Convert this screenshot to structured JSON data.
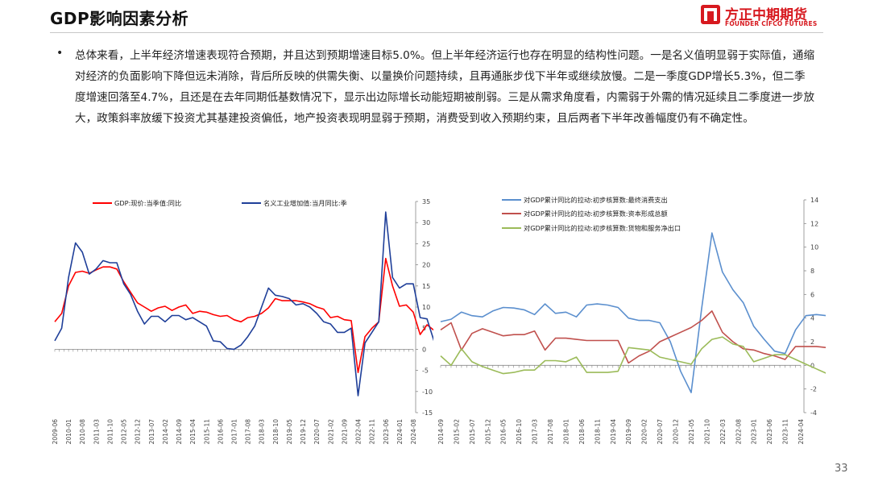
{
  "header": {
    "title": "GDP影响因素分析"
  },
  "logo": {
    "cn": "方正中期期货",
    "en": "FOUNDER CIFCO FUTURES",
    "color": "#d7191f"
  },
  "body": {
    "bullet": "•",
    "text": "总体来看，上半年经济增速表现符合预期，并且达到预期增速目标5.0%。但上半年经济运行也存在明显的结构性问题。一是名义值明显弱于实际值，通缩对经济的负面影响下降但远未消除，背后所反映的供需失衡、以量换价问题持续，且再通胀步伐下半年或继续放慢。二是一季度GDP增长5.3%，但二季度增速回落至4.7%，且还是在去年同期低基数情况下，显示出边际增长动能短期被削弱。三是从需求角度看，内需弱于外需的情况延续且二季度进一步放大，政策斜率放缓下投资尤其基建投资偏低，地产投资表现明显弱于预期，消费受到收入预期约束，且后两者下半年改善幅度仍有不确定性。"
  },
  "page_number": "33",
  "chart_data": [
    {
      "type": "line",
      "title": "",
      "legend_position": "top",
      "y_axis_position": "right",
      "ylim": [
        -15,
        35
      ],
      "yticks": [
        "35",
        "30",
        "25",
        "20",
        "15",
        "10",
        "5",
        "0",
        "-5",
        "-10",
        "-15"
      ],
      "xticks": [
        "2009-06",
        "2010-01",
        "2010-08",
        "2011-03",
        "2011-10",
        "2012-05",
        "2012-12",
        "2013-07",
        "2014-02",
        "2014-09",
        "2015-04",
        "2015-11",
        "2016-06",
        "2017-01",
        "2017-08",
        "2018-03",
        "2018-10",
        "2019-05",
        "2019-12",
        "2020-07",
        "2021-02",
        "2021-09",
        "2022-04",
        "2022-11",
        "2023-06",
        "2024-01",
        "2024-08"
      ],
      "series": [
        {
          "name": "GDP:现价:当季值:同比",
          "color": "#ff0000",
          "values": [
            [
              0,
              6.5
            ],
            [
              0.5,
              8.5
            ],
            [
              1.0,
              15
            ],
            [
              1.5,
              18.2
            ],
            [
              2.0,
              18.5
            ],
            [
              2.5,
              18
            ],
            [
              3.0,
              18.8
            ],
            [
              3.5,
              19.5
            ],
            [
              4.0,
              19.5
            ],
            [
              4.5,
              19
            ],
            [
              5.0,
              16
            ],
            [
              5.5,
              13.5
            ],
            [
              6.0,
              11
            ],
            [
              6.5,
              10
            ],
            [
              7.0,
              9
            ],
            [
              7.5,
              9.8
            ],
            [
              8.0,
              10.2
            ],
            [
              8.5,
              9.2
            ],
            [
              9.0,
              10
            ],
            [
              9.5,
              10.5
            ],
            [
              10.0,
              8.5
            ],
            [
              10.5,
              9
            ],
            [
              11.0,
              8.8
            ],
            [
              11.5,
              8.2
            ],
            [
              12.0,
              7.8
            ],
            [
              12.5,
              8
            ],
            [
              13.0,
              7
            ],
            [
              13.5,
              6.5
            ],
            [
              14.0,
              7.5
            ],
            [
              14.5,
              7.8
            ],
            [
              15.0,
              8.5
            ],
            [
              15.5,
              9.8
            ],
            [
              16.0,
              12
            ],
            [
              16.5,
              11.5
            ],
            [
              17.0,
              11.5
            ],
            [
              17.5,
              11.5
            ],
            [
              18.0,
              11.2
            ],
            [
              18.5,
              10.8
            ],
            [
              19.0,
              10
            ],
            [
              19.5,
              9.5
            ],
            [
              20.0,
              7.5
            ],
            [
              20.5,
              7.8
            ],
            [
              21.0,
              7
            ],
            [
              21.5,
              6.8
            ],
            [
              22.0,
              -5.5
            ],
            [
              22.5,
              3
            ],
            [
              23.0,
              5
            ],
            [
              23.5,
              6.5
            ],
            [
              24.0,
              21.5
            ],
            [
              24.5,
              15
            ],
            [
              25.0,
              10.2
            ],
            [
              25.5,
              10.5
            ],
            [
              26.0,
              8.8
            ],
            [
              26.5,
              3.5
            ],
            [
              27.0,
              5.8
            ],
            [
              27.5,
              4.5
            ],
            [
              28.0,
              2.2
            ],
            [
              28.5,
              5
            ],
            [
              29.0,
              5.2
            ],
            [
              29.5,
              4
            ],
            [
              30.0,
              4.2
            ],
            [
              30.5,
              4.2
            ],
            [
              31.0,
              4.2
            ]
          ]
        },
        {
          "name": "名义工业增加值:当月同比:季",
          "color": "#1f3f99",
          "values": [
            [
              0,
              2
            ],
            [
              0.5,
              5
            ],
            [
              1.0,
              17
            ],
            [
              1.5,
              25.2
            ],
            [
              2.0,
              23
            ],
            [
              2.5,
              17.8
            ],
            [
              3.0,
              19
            ],
            [
              3.5,
              21
            ],
            [
              4.0,
              20.5
            ],
            [
              4.5,
              20.5
            ],
            [
              5.0,
              15.5
            ],
            [
              5.5,
              13
            ],
            [
              6.0,
              9
            ],
            [
              6.5,
              6
            ],
            [
              7.0,
              7.8
            ],
            [
              7.5,
              7.8
            ],
            [
              8.0,
              6.5
            ],
            [
              8.5,
              8
            ],
            [
              9.0,
              8
            ],
            [
              9.5,
              7
            ],
            [
              10.0,
              7.5
            ],
            [
              10.5,
              6.5
            ],
            [
              11.0,
              5.5
            ],
            [
              11.5,
              2
            ],
            [
              12.0,
              1.8
            ],
            [
              12.5,
              0.2
            ],
            [
              13.0,
              0
            ],
            [
              13.5,
              1
            ],
            [
              14.0,
              3
            ],
            [
              14.5,
              5.5
            ],
            [
              15.0,
              10
            ],
            [
              15.5,
              14.5
            ],
            [
              16.0,
              12.8
            ],
            [
              16.5,
              12.5
            ],
            [
              17.0,
              12
            ],
            [
              17.5,
              10.5
            ],
            [
              18.0,
              10.8
            ],
            [
              18.5,
              10
            ],
            [
              19.0,
              8.5
            ],
            [
              19.5,
              6.5
            ],
            [
              20.0,
              6
            ],
            [
              20.5,
              4
            ],
            [
              21.0,
              4
            ],
            [
              21.5,
              5
            ],
            [
              22.0,
              -11
            ],
            [
              22.5,
              1.5
            ],
            [
              23.0,
              4
            ],
            [
              23.5,
              6.5
            ],
            [
              24.0,
              32.5
            ],
            [
              24.5,
              17
            ],
            [
              25.0,
              14.5
            ],
            [
              25.5,
              15.5
            ],
            [
              26.0,
              15.5
            ],
            [
              26.5,
              7.5
            ],
            [
              27.0,
              7.2
            ],
            [
              27.5,
              2
            ],
            [
              28.0,
              3.5
            ],
            [
              28.5,
              0.5
            ],
            [
              29.0,
              1
            ],
            [
              29.5,
              3
            ],
            [
              30.0,
              3.5
            ],
            [
              30.5,
              4.8
            ],
            [
              31.0,
              4.5
            ]
          ]
        }
      ]
    },
    {
      "type": "line",
      "title": "",
      "legend_position": "top",
      "y_axis_position": "right",
      "ylim": [
        -4,
        14
      ],
      "yticks": [
        "14",
        "12",
        "10",
        "8",
        "6",
        "4",
        "2",
        "0",
        "-2",
        "-4"
      ],
      "xticks": [
        "2014-09",
        "2015-02",
        "2015-07",
        "2015-12",
        "2016-05",
        "2016-10",
        "2017-03",
        "2017-08",
        "2018-01",
        "2018-06",
        "2018-11",
        "2019-04",
        "2019-09",
        "2020-02",
        "2020-07",
        "2020-12",
        "2021-05",
        "2021-10",
        "2022-03",
        "2022-08",
        "2023-01",
        "2023-06",
        "2023-11",
        "2024-04"
      ],
      "series": [
        {
          "name": "对GDP累计同比的拉动:初步核算数:最终消费支出",
          "color": "#5b8fce",
          "values": [
            [
              0,
              3.7
            ],
            [
              0.67,
              3.9
            ],
            [
              1.33,
              4.5
            ],
            [
              2.0,
              4.2
            ],
            [
              2.67,
              4.1
            ],
            [
              3.33,
              4.6
            ],
            [
              4.0,
              4.9
            ],
            [
              4.67,
              4.85
            ],
            [
              5.33,
              4.7
            ],
            [
              6.0,
              4.3
            ],
            [
              6.67,
              5.2
            ],
            [
              7.33,
              4.4
            ],
            [
              8.0,
              4.5
            ],
            [
              8.67,
              4.1
            ],
            [
              9.33,
              5.1
            ],
            [
              10.0,
              5.2
            ],
            [
              10.67,
              5.1
            ],
            [
              11.33,
              4.9
            ],
            [
              12.0,
              4.0
            ],
            [
              12.67,
              3.8
            ],
            [
              13.33,
              3.8
            ],
            [
              14.0,
              3.6
            ],
            [
              14.67,
              2.0
            ],
            [
              15.33,
              -0.5
            ],
            [
              16.0,
              -2.3
            ],
            [
              16.67,
              4.8
            ],
            [
              17.33,
              11.2
            ],
            [
              18.0,
              7.9
            ],
            [
              18.67,
              6.4
            ],
            [
              19.33,
              5.3
            ],
            [
              20.0,
              3.3
            ],
            [
              20.67,
              2.2
            ],
            [
              21.33,
              1.2
            ],
            [
              22.0,
              1.0
            ],
            [
              22.67,
              3.0
            ],
            [
              23.33,
              4.2
            ],
            [
              24.0,
              4.3
            ],
            [
              24.67,
              4.2
            ],
            [
              25.33,
              3.8
            ],
            [
              26.0,
              3.0
            ]
          ]
        },
        {
          "name": "对GDP累计同比的拉动:初步核算数:资本形成总额",
          "color": "#c0504d",
          "values": [
            [
              0,
              3.0
            ],
            [
              0.67,
              3.6
            ],
            [
              1.33,
              1.3
            ],
            [
              2.0,
              2.7
            ],
            [
              2.67,
              3.1
            ],
            [
              3.33,
              2.8
            ],
            [
              4.0,
              2.5
            ],
            [
              4.67,
              2.6
            ],
            [
              5.33,
              2.6
            ],
            [
              6.0,
              2.9
            ],
            [
              6.67,
              1.3
            ],
            [
              7.33,
              2.3
            ],
            [
              8.0,
              2.3
            ],
            [
              8.67,
              2.2
            ],
            [
              9.33,
              2.1
            ],
            [
              10.0,
              2.1
            ],
            [
              10.67,
              2.1
            ],
            [
              11.33,
              2.1
            ],
            [
              12.0,
              0.2
            ],
            [
              12.67,
              0.8
            ],
            [
              13.33,
              1.2
            ],
            [
              14.0,
              2.0
            ],
            [
              14.67,
              2.4
            ],
            [
              15.33,
              2.8
            ],
            [
              16.0,
              3.2
            ],
            [
              16.67,
              3.8
            ],
            [
              17.33,
              4.6
            ],
            [
              18.0,
              2.8
            ],
            [
              18.67,
              2.0
            ],
            [
              19.33,
              1.4
            ],
            [
              20.0,
              1.3
            ],
            [
              20.67,
              1.0
            ],
            [
              21.33,
              0.8
            ],
            [
              22.0,
              0.5
            ],
            [
              22.67,
              1.6
            ],
            [
              23.33,
              1.6
            ],
            [
              24.0,
              1.6
            ],
            [
              24.67,
              1.5
            ],
            [
              25.33,
              1.3
            ],
            [
              26.0,
              1.2
            ]
          ]
        },
        {
          "name": "对GDP累计同比的拉动:初步核算数:货物和服务净出口",
          "color": "#9bbb59",
          "values": [
            [
              0,
              0.8
            ],
            [
              0.67,
              0
            ],
            [
              1.33,
              1.4
            ],
            [
              2.0,
              0.3
            ],
            [
              2.67,
              -0.1
            ],
            [
              3.33,
              -0.4
            ],
            [
              4.0,
              -0.7
            ],
            [
              4.67,
              -0.6
            ],
            [
              5.33,
              -0.4
            ],
            [
              6.0,
              -0.4
            ],
            [
              6.67,
              0.4
            ],
            [
              7.33,
              0.4
            ],
            [
              8.0,
              0.3
            ],
            [
              8.67,
              0.7
            ],
            [
              9.33,
              -0.6
            ],
            [
              10.0,
              -0.6
            ],
            [
              10.67,
              -0.6
            ],
            [
              11.33,
              -0.5
            ],
            [
              12.0,
              1.5
            ],
            [
              12.67,
              1.4
            ],
            [
              13.33,
              1.3
            ],
            [
              14.0,
              0.7
            ],
            [
              14.67,
              0.5
            ],
            [
              15.33,
              0.3
            ],
            [
              16.0,
              0.1
            ],
            [
              16.67,
              1.4
            ],
            [
              17.33,
              2.2
            ],
            [
              18.0,
              2.4
            ],
            [
              18.67,
              1.8
            ],
            [
              19.33,
              1.6
            ],
            [
              20.0,
              0.3
            ],
            [
              20.67,
              0.6
            ],
            [
              21.33,
              0.9
            ],
            [
              22.0,
              0.9
            ],
            [
              22.67,
              0.5
            ],
            [
              23.33,
              0.1
            ],
            [
              24.0,
              -0.3
            ],
            [
              24.67,
              -0.7
            ],
            [
              25.33,
              -0.6
            ],
            [
              26.0,
              0.8
            ]
          ]
        }
      ]
    }
  ]
}
